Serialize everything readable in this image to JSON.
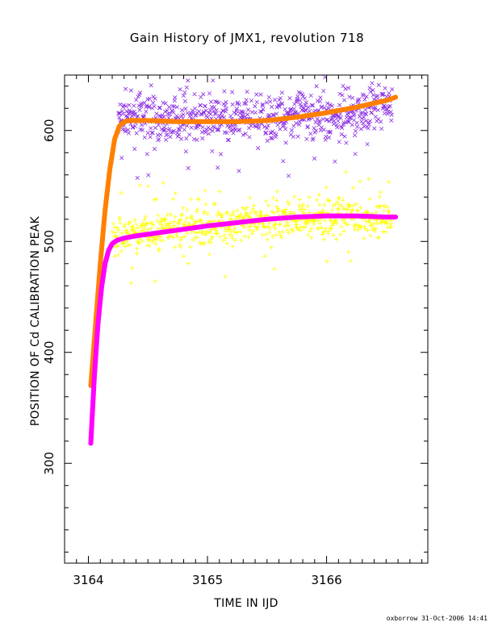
{
  "colors": {
    "cross_mark": "#8a2be2",
    "plus_mark": "#ffff00",
    "upper_fit": "#ff8000",
    "lower_fit": "#ff00ff",
    "axis": "#000000"
  },
  "chart_data": {
    "type": "scatter",
    "title": "Gain History of JMX1, revolution 718",
    "xlabel": "TIME IN IJD",
    "ylabel": "POSITION OF Cd CALIBRATION PEAK",
    "xlim": [
      3163.8,
      3166.85
    ],
    "ylim": [
      210,
      650
    ],
    "x_ticks": [
      3164,
      3165,
      3166
    ],
    "y_ticks": [
      300,
      400,
      500,
      600
    ],
    "x_minor_step": 0.1,
    "y_minor_step": 20,
    "grid": false,
    "series": [
      {
        "marker": "x",
        "color": "#8a2be2",
        "x_range": [
          3164.25,
          3166.55
        ],
        "x": [
          3164.25,
          3164.4,
          3164.6,
          3164.8,
          3165.0,
          3165.2,
          3165.4,
          3165.6,
          3165.8,
          3166.0,
          3166.2,
          3166.4,
          3166.55
        ],
        "y": [
          609,
          613,
          608,
          611,
          612,
          610,
          608,
          614,
          615,
          611,
          616,
          621,
          625
        ],
        "spread": 14
      },
      {
        "marker": "+",
        "color": "#ffff00",
        "x_range": [
          3164.2,
          3166.55
        ],
        "x": [
          3164.2,
          3164.4,
          3164.6,
          3164.8,
          3165.0,
          3165.2,
          3165.4,
          3165.6,
          3165.8,
          3166.0,
          3166.2,
          3166.4,
          3166.55
        ],
        "y": [
          505,
          508,
          510,
          512,
          513,
          515,
          518,
          520,
          521,
          523,
          522,
          522,
          521
        ],
        "spread": 12
      },
      {
        "marker": "line",
        "color": "#ff8000",
        "x": [
          3164.02,
          3164.06,
          3164.1,
          3164.14,
          3164.18,
          3164.22,
          3164.26,
          3164.3,
          3164.35,
          3164.5,
          3164.75,
          3165.0,
          3165.25,
          3165.5,
          3165.75,
          3166.0,
          3166.25,
          3166.5,
          3166.58
        ],
        "y": [
          370,
          425,
          480,
          528,
          565,
          592,
          604,
          608,
          609,
          609,
          608,
          608,
          608,
          609,
          612,
          616,
          621,
          627,
          630
        ]
      },
      {
        "marker": "line",
        "color": "#ff00ff",
        "x": [
          3164.02,
          3164.05,
          3164.08,
          3164.11,
          3164.14,
          3164.17,
          3164.2,
          3164.24,
          3164.3,
          3164.4,
          3164.6,
          3164.8,
          3165.0,
          3165.25,
          3165.5,
          3165.75,
          3166.0,
          3166.25,
          3166.5,
          3166.58
        ],
        "y": [
          318,
          378,
          425,
          458,
          480,
          492,
          498,
          501,
          503,
          505,
          508,
          511,
          514,
          517,
          520,
          522,
          523,
          523,
          522,
          522
        ]
      }
    ]
  },
  "footer": {
    "stamp": "oxborrow 31-Oct-2006 14:41"
  }
}
